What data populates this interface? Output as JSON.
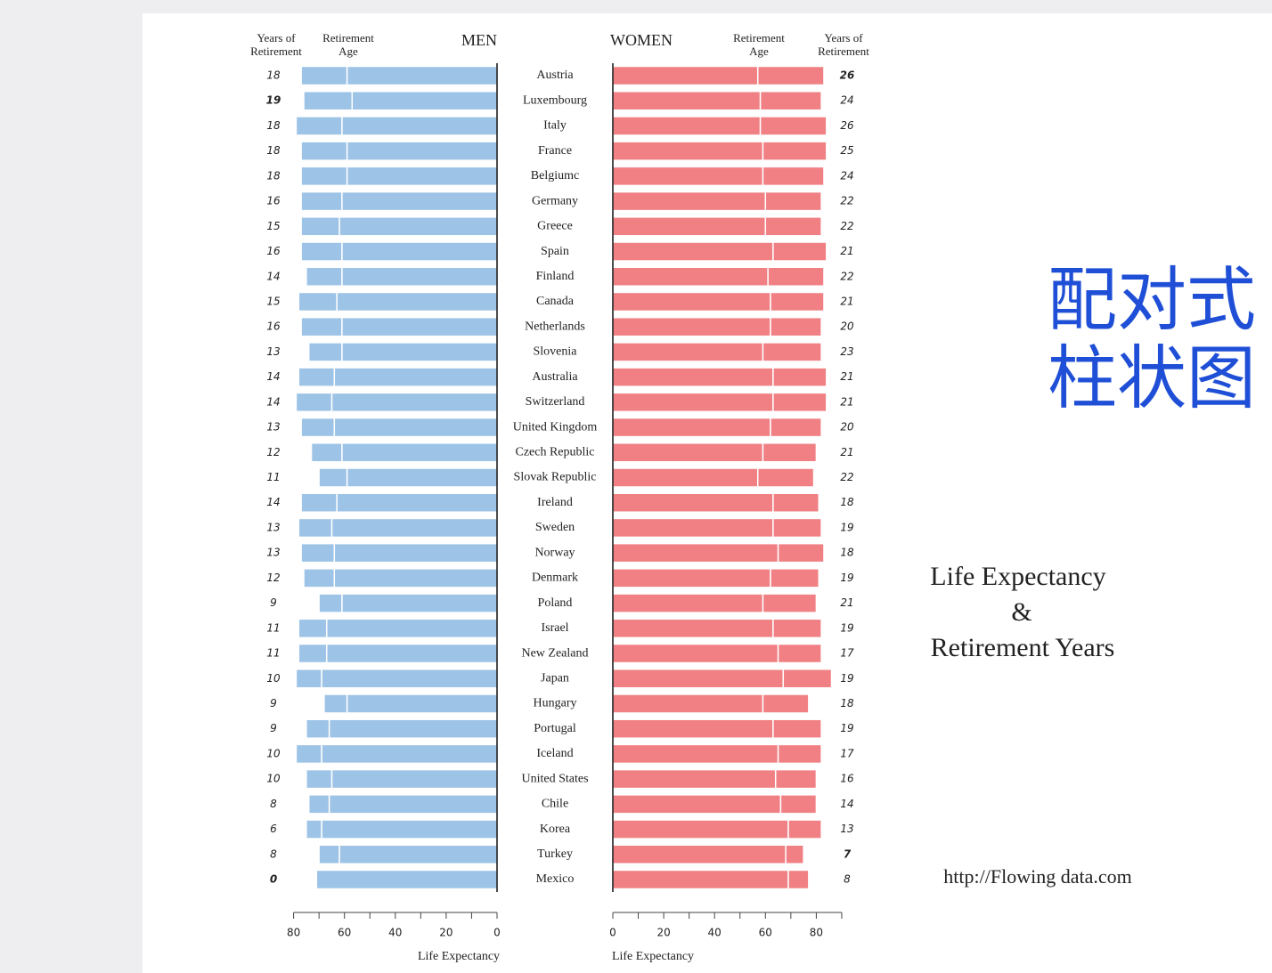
{
  "chart_data": {
    "type": "paired-bar",
    "categories": [
      "Austria",
      "Luxembourg",
      "Italy",
      "France",
      "Belgiumc",
      "Germany",
      "Greece",
      "Spain",
      "Finland",
      "Canada",
      "Netherlands",
      "Slovenia",
      "Australia",
      "Switzerland",
      "United Kingdom",
      "Czech Republic",
      "Slovak Republic",
      "Ireland",
      "Sweden",
      "Norway",
      "Denmark",
      "Poland",
      "Israel",
      "New Zealand",
      "Japan",
      "Hungary",
      "Portugal",
      "Iceland",
      "United States",
      "Chile",
      "Korea",
      "Turkey",
      "Mexico"
    ],
    "panels": [
      {
        "title": "MEN",
        "color": "#9dc3e6",
        "reversed": true,
        "col_years": [
          "Years of",
          "Retirement"
        ],
        "col_age": [
          "Retirement",
          "Age"
        ],
        "retirement_age": [
          59,
          57,
          61,
          59,
          59,
          61,
          62,
          61,
          61,
          63,
          61,
          61,
          64,
          65,
          64,
          61,
          59,
          63,
          65,
          64,
          64,
          61,
          67,
          67,
          69,
          59,
          66,
          69,
          65,
          66,
          69,
          62,
          71
        ],
        "years_of_retirement": [
          18,
          19,
          18,
          18,
          18,
          16,
          15,
          16,
          14,
          15,
          16,
          13,
          14,
          14,
          13,
          12,
          11,
          14,
          13,
          13,
          12,
          9,
          11,
          11,
          10,
          9,
          9,
          10,
          10,
          8,
          6,
          8,
          0
        ],
        "bold_values": [
          1,
          32
        ],
        "xlim": [
          0,
          80
        ],
        "xticks": [
          0,
          20,
          40,
          60,
          80
        ],
        "xminor_ticks": [
          10,
          30,
          50,
          70
        ],
        "xlabel": "Life Expectancy"
      },
      {
        "title": "WOMEN",
        "color": "#f08084",
        "reversed": false,
        "col_years": [
          "Years of",
          "Retirement"
        ],
        "col_age": [
          "Retirement",
          "Age"
        ],
        "retirement_age": [
          57,
          58,
          58,
          59,
          59,
          60,
          60,
          63,
          61,
          62,
          62,
          59,
          63,
          63,
          62,
          59,
          57,
          63,
          63,
          65,
          62,
          59,
          63,
          65,
          67,
          59,
          63,
          65,
          64,
          66,
          69,
          68,
          69
        ],
        "years_of_retirement": [
          26,
          24,
          26,
          25,
          24,
          22,
          22,
          21,
          22,
          21,
          20,
          23,
          21,
          21,
          20,
          21,
          22,
          18,
          19,
          18,
          19,
          21,
          19,
          17,
          19,
          18,
          19,
          17,
          16,
          14,
          13,
          7,
          8
        ],
        "bold_values": [
          0,
          31
        ],
        "xlim": [
          0,
          90
        ],
        "xticks": [
          0,
          20,
          40,
          60,
          80
        ],
        "xminor_ticks": [
          10,
          30,
          50,
          70,
          90
        ],
        "xlabel": "Life Expectancy"
      }
    ]
  },
  "side_title": [
    "配对式",
    "柱状图"
  ],
  "side_text": [
    "Life Expectancy",
    "&",
    "Retirement Years"
  ],
  "source": "http://Flowing data.com"
}
